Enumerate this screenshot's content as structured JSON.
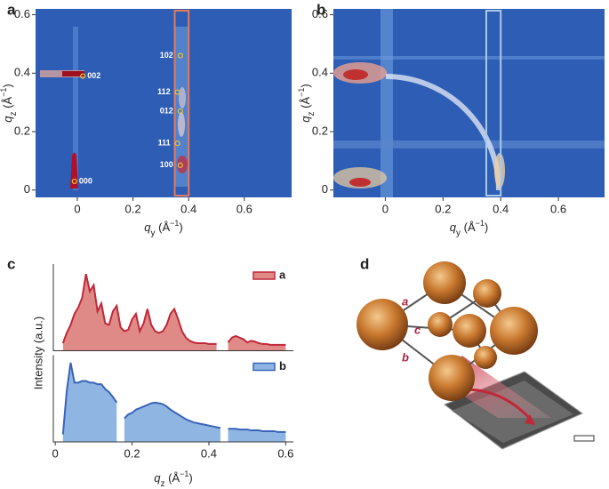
{
  "chart_data": [
    {
      "type": "heatmap",
      "label": "a",
      "background": "#2d5db5",
      "xlabel": [
        "q",
        "y",
        " (Å",
        "−1",
        ")"
      ],
      "ylabel": [
        "q",
        "z",
        " (Å",
        "−1",
        ")"
      ],
      "xlim": [
        -0.15,
        0.77
      ],
      "ylim": [
        -0.025,
        0.62
      ],
      "xticks": [
        0,
        0.2,
        0.4,
        0.6
      ],
      "yticks": [
        0,
        0.2,
        0.4,
        0.6
      ],
      "highlight": {
        "xlim": [
          0.35,
          0.4
        ],
        "color": "#e8795a"
      },
      "annotations": [
        {
          "text": "000",
          "x": -0.01,
          "y": 0.03
        },
        {
          "text": "002",
          "x": 0.02,
          "y": 0.39
        },
        {
          "text": "102",
          "x": 0.37,
          "y": 0.46
        },
        {
          "text": "112",
          "x": 0.36,
          "y": 0.335
        },
        {
          "text": "012",
          "x": 0.37,
          "y": 0.27
        },
        {
          "text": "111",
          "x": 0.36,
          "y": 0.16
        },
        {
          "text": "100",
          "x": 0.37,
          "y": 0.085
        }
      ],
      "marker_color": "#f2c230"
    },
    {
      "type": "heatmap",
      "label": "b",
      "background": "#2d5db5",
      "xlabel": [
        "q",
        "y",
        " (Å",
        "−1",
        ")"
      ],
      "ylabel": [
        "q",
        "z",
        " (Å",
        "−1",
        ")"
      ],
      "xlim": [
        -0.18,
        0.76
      ],
      "ylim": [
        -0.025,
        0.62
      ],
      "xticks": [
        0,
        0.2,
        0.4,
        0.6
      ],
      "yticks": [
        0,
        0.2,
        0.4,
        0.6
      ],
      "highlight": {
        "xlim": [
          0.35,
          0.4
        ],
        "color": "#a9cbea"
      }
    },
    {
      "type": "area",
      "label": "c",
      "xlabel": [
        "q",
        "z",
        " (Å",
        "−1",
        ")"
      ],
      "ylabel": "Intensity (a.u.)",
      "xlim": [
        -0.005,
        0.62
      ],
      "ylim": [
        0,
        1
      ],
      "xticks": [
        0,
        0.2,
        0.4,
        0.6
      ],
      "x": [
        0.02,
        0.03,
        0.04,
        0.05,
        0.06,
        0.07,
        0.08,
        0.09,
        0.1,
        0.11,
        0.12,
        0.13,
        0.14,
        0.15,
        0.16,
        0.17,
        0.18,
        0.19,
        0.2,
        0.21,
        0.22,
        0.23,
        0.24,
        0.25,
        0.26,
        0.27,
        0.28,
        0.29,
        0.3,
        0.31,
        0.32,
        0.33,
        0.34,
        0.35,
        0.36,
        0.37,
        0.38,
        0.39,
        0.4,
        0.41,
        0.42,
        0.43,
        0.44,
        0.45,
        0.46,
        0.47,
        0.48,
        0.49,
        0.5,
        0.51,
        0.52,
        0.53,
        0.54,
        0.55,
        0.56,
        0.57,
        0.58,
        0.59,
        0.6
      ],
      "series": [
        {
          "name": "a",
          "color": "#c0283a",
          "fill": "#e08a88",
          "values": [
            0.05,
            0.18,
            0.28,
            0.42,
            0.5,
            0.62,
            0.92,
            0.7,
            0.78,
            0.45,
            0.55,
            0.3,
            0.28,
            0.45,
            0.52,
            0.25,
            0.2,
            0.22,
            0.35,
            0.42,
            0.2,
            0.3,
            0.48,
            0.28,
            0.2,
            0.18,
            0.2,
            0.28,
            0.42,
            0.48,
            0.35,
            0.2,
            0.12,
            0.08,
            0.06,
            0.05,
            0.05,
            0.05,
            0.04,
            0.04,
            0.04,
            null,
            null,
            0.06,
            0.12,
            0.14,
            0.12,
            0.1,
            0.06,
            0.08,
            0.07,
            0.05,
            0.04,
            0.04,
            0.03,
            0.03,
            0.03,
            0.03,
            0.03
          ]
        },
        {
          "name": "b",
          "color": "#3a63b8",
          "fill": "#8fb6e3",
          "values": [
            0.05,
            0.6,
            0.95,
            0.7,
            0.7,
            0.72,
            0.72,
            0.7,
            0.7,
            0.68,
            0.68,
            0.62,
            0.58,
            0.52,
            0.45,
            null,
            0.25,
            0.3,
            0.32,
            0.36,
            0.38,
            0.4,
            0.42,
            0.44,
            0.45,
            0.44,
            0.43,
            0.4,
            0.36,
            0.33,
            0.3,
            0.27,
            0.24,
            0.22,
            0.2,
            0.19,
            0.18,
            0.17,
            0.16,
            0.15,
            0.14,
            0.13,
            null,
            0.12,
            0.12,
            0.12,
            0.11,
            0.11,
            0.11,
            0.1,
            0.1,
            0.1,
            0.09,
            0.09,
            0.09,
            0.09,
            0.08,
            0.08,
            0.08
          ]
        }
      ]
    }
  ],
  "illustration": {
    "label": "d",
    "lattice_labels": [
      "a",
      "c",
      "b"
    ]
  }
}
